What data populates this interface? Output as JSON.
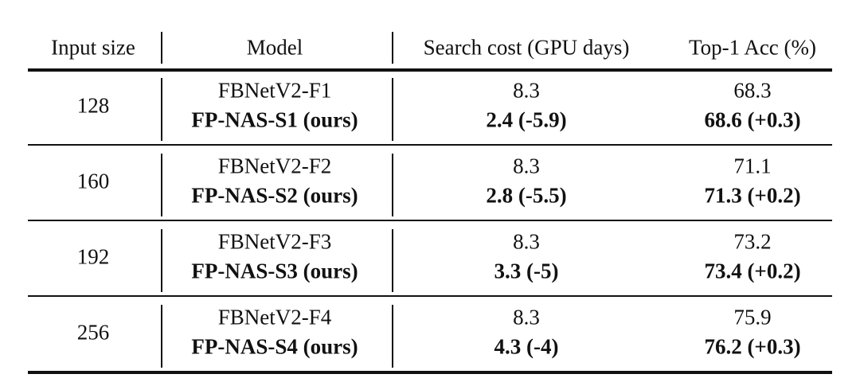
{
  "table": {
    "header": [
      "Input size",
      "Model",
      "Search cost (GPU days)",
      "Top-1 Acc (%)"
    ],
    "groups": [
      {
        "input_size": "128",
        "rows": [
          [
            "FBNetV2-F1",
            "8.3",
            "68.3"
          ],
          [
            "FP-NAS-S1 (ours)",
            "2.4 (-5.9)",
            "68.6 (+0.3)"
          ]
        ]
      },
      {
        "input_size": "160",
        "rows": [
          [
            "FBNetV2-F2",
            "8.3",
            "71.1"
          ],
          [
            "FP-NAS-S2 (ours)",
            "2.8 (-5.5)",
            "71.3 (+0.2)"
          ]
        ]
      },
      {
        "input_size": "192",
        "rows": [
          [
            "FBNetV2-F3",
            "8.3",
            "73.2"
          ],
          [
            "FP-NAS-S3 (ours)",
            "3.3 (-5)",
            "73.4 (+0.2)"
          ]
        ]
      },
      {
        "input_size": "256",
        "rows": [
          [
            "FBNetV2-F4",
            "8.3",
            "75.9"
          ],
          [
            "FP-NAS-S4 (ours)",
            "4.3 (-4)",
            "76.2 (+0.3)"
          ]
        ]
      }
    ]
  }
}
